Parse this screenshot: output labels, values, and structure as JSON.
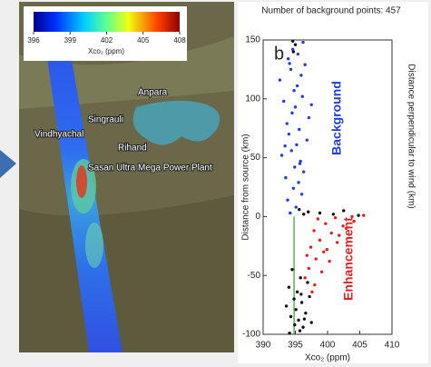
{
  "map": {
    "colorbar": {
      "lim": [
        396,
        408
      ],
      "ticks": [
        396,
        399,
        402,
        405,
        408
      ],
      "label": "Xco₂ (ppm)"
    },
    "places": [
      "Anpara",
      "Singrauli",
      "Vindhyachal",
      "Rihand",
      "Sasan Ultra Mega Power Plant"
    ]
  },
  "chart_data": {
    "type": "scatter",
    "title": "Number of background points: 457",
    "panel_label": "b",
    "xlabel": "Xco₂ (ppm)",
    "ylabel": "Distance from source (km)",
    "y2label": "Distance perpendicular to wind (km)",
    "xlim": [
      390,
      410
    ],
    "xticks": [
      390,
      395,
      400,
      405,
      410
    ],
    "ylim": [
      -100,
      150
    ],
    "yticks": [
      -100,
      -50,
      0,
      50,
      100,
      150
    ],
    "vline": {
      "x": 394.8,
      "y": [
        -100,
        0
      ],
      "color": "#3a9a3a"
    },
    "series": [
      {
        "name": "Background",
        "color": "#1f3fe0",
        "x": [
          394.2,
          395.1,
          393.8,
          396.0,
          394.7,
          395.5,
          393.5,
          396.3,
          394.9,
          395.8,
          392.9,
          394.4,
          395.2,
          396.8,
          394.0,
          395.6,
          393.7,
          397.1,
          394.5,
          395.0,
          393.2,
          396.1,
          394.8,
          395.3,
          392.6,
          395.9,
          394.3,
          396.5,
          393.9,
          395.4,
          394.6,
          397.5,
          393.4,
          395.7,
          394.1,
          396.2
        ],
        "values": [
          3,
          8,
          14,
          19,
          24,
          29,
          33,
          38,
          42,
          47,
          52,
          56,
          61,
          65,
          70,
          74,
          79,
          84,
          88,
          93,
          98,
          102,
          107,
          111,
          116,
          120,
          125,
          129,
          134,
          138,
          142,
          95,
          60,
          45,
          130,
          148
        ]
      },
      {
        "name": "Enhancement",
        "color": "#e82020",
        "x": [
          398.5,
          401.2,
          403.8,
          405.6,
          399.7,
          402.4,
          404.1,
          397.9,
          400.6,
          402.9,
          398.8,
          401.5,
          397.4,
          399.9,
          396.8,
          398.2,
          400.3,
          397.1,
          399.1,
          396.5,
          398.0,
          397.6,
          399.4,
          401.8
        ],
        "values": [
          -2,
          -1,
          0,
          1,
          -6,
          -8,
          -4,
          -12,
          -14,
          -10,
          -20,
          -22,
          -26,
          -28,
          -33,
          -36,
          -38,
          -44,
          -47,
          -52,
          -58,
          -64,
          -30,
          -16
        ]
      },
      {
        "color": "#111111",
        "x": [
          395.6,
          397.0,
          398.8,
          400.9,
          402.5,
          404.8,
          396.3,
          394.5,
          395.8,
          396.9,
          394.0,
          395.3,
          397.2,
          394.8,
          396.0,
          393.6,
          395.1,
          396.6,
          394.3,
          395.5,
          397.5,
          394.9,
          396.2,
          395.7,
          394.1,
          396.4,
          394.7,
          395.0,
          394.6,
          395.9
        ],
        "values": [
          6,
          4,
          3,
          2,
          5,
          1,
          2,
          -45,
          -52,
          -56,
          -60,
          -64,
          -68,
          -70,
          -73,
          -76,
          -79,
          -82,
          -85,
          -88,
          -90,
          -92,
          -94,
          -97,
          -99,
          -87,
          140,
          146,
          149,
          -66
        ]
      }
    ]
  }
}
